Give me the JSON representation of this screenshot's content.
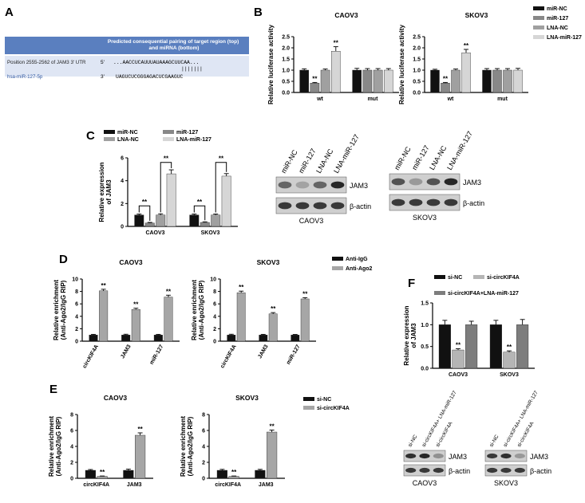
{
  "panel_letters": {
    "a": "A",
    "b": "B",
    "c": "C",
    "d": "D",
    "e": "E",
    "f": "F"
  },
  "panelA": {
    "header": "Predicted consequential pairing of target region (top) and miRNA (bottom)",
    "row1_label": "Position 2555-2562 of JAM3 3' UTR",
    "row1_end": "5'",
    "row1_seq": "...AACCUCAUUUAUAAAGCUUCAA...",
    "pairing": "|||||||",
    "row2_label": "hsa-miR-127-5p",
    "row2_end": "3'",
    "row2_seq": "UAGUCUCGGGAGACUCGAAGUC",
    "colors": {
      "header_bg": "#5a7fbf",
      "row_bg": "#dfe6f4",
      "label_color": "#2e56a0"
    }
  },
  "blots": {
    "C_caov3": {
      "lanes": [
        "miR-NC",
        "miR-127",
        "LNA-NC",
        "LNA-miR-127"
      ],
      "bands": [
        "JAM3",
        "β-actin"
      ],
      "caption": "CAOV3"
    },
    "C_skov3": {
      "lanes": [
        "miR-NC",
        "miR-127",
        "LNA-NC",
        "LNA-miR-127"
      ],
      "bands": [
        "JAM3",
        "β-actin"
      ],
      "caption": "SKOV3"
    },
    "F_caov3": {
      "lanes": [
        "si-NC",
        "si-circKIF4A+ LNA-miR-127",
        "si-circKIF4A"
      ],
      "bands": [
        "JAM3",
        "β-actin"
      ],
      "caption": "CAOV3"
    },
    "F_skov3": {
      "lanes": [
        "si-NC",
        "si-circKIF4A+ LNA-miR-127",
        "si-circKIF4A"
      ],
      "bands": [
        "JAM3",
        "β-actin"
      ],
      "caption": "SKOV3"
    }
  },
  "chart_data": [
    {
      "id": "B1",
      "type": "bar",
      "title": "CAOV3",
      "ylabel": "Relative luciferase activity",
      "ylim": [
        0,
        2.5
      ],
      "yticks": [
        "0.0",
        "0.5",
        "1.0",
        "1.5",
        "2.0",
        "2.5"
      ],
      "categories": [
        "wt",
        "mut"
      ],
      "series": [
        {
          "name": "miR-NC",
          "color": "#111111",
          "values": [
            1.0,
            1.0
          ],
          "errors": [
            0.06,
            0.08
          ],
          "sig": [
            "",
            ""
          ]
        },
        {
          "name": "miR-127",
          "color": "#888888",
          "values": [
            0.42,
            1.0
          ],
          "errors": [
            0.03,
            0.07
          ],
          "sig": [
            "**",
            ""
          ]
        },
        {
          "name": "LNA-NC",
          "color": "#a0a0a0",
          "values": [
            1.0,
            1.0
          ],
          "errors": [
            0.05,
            0.07
          ],
          "sig": [
            "",
            ""
          ]
        },
        {
          "name": "LNA-miR-127",
          "color": "#d6d6d6",
          "values": [
            1.85,
            1.0
          ],
          "errors": [
            0.2,
            0.07
          ],
          "sig": [
            "**",
            ""
          ]
        }
      ]
    },
    {
      "id": "B2",
      "type": "bar",
      "title": "SKOV3",
      "ylabel": "Relative luciferase activity",
      "ylim": [
        0,
        2.5
      ],
      "yticks": [
        "0.0",
        "0.5",
        "1.0",
        "1.5",
        "2.0",
        "2.5"
      ],
      "categories": [
        "wt",
        "mut"
      ],
      "series": [
        {
          "name": "miR-NC",
          "color": "#111111",
          "values": [
            1.0,
            1.0
          ],
          "errors": [
            0.04,
            0.07
          ],
          "sig": [
            "",
            ""
          ]
        },
        {
          "name": "miR-127",
          "color": "#888888",
          "values": [
            0.42,
            1.0
          ],
          "errors": [
            0.03,
            0.07
          ],
          "sig": [
            "**",
            ""
          ]
        },
        {
          "name": "LNA-NC",
          "color": "#a0a0a0",
          "values": [
            1.0,
            1.0
          ],
          "errors": [
            0.05,
            0.07
          ],
          "sig": [
            "",
            ""
          ]
        },
        {
          "name": "LNA-miR-127",
          "color": "#d6d6d6",
          "values": [
            1.78,
            1.0
          ],
          "errors": [
            0.15,
            0.08
          ],
          "sig": [
            "**",
            ""
          ]
        }
      ]
    },
    {
      "id": "C",
      "type": "bar",
      "ylabel": "Relative expression of JAM3",
      "ylim": [
        0,
        6
      ],
      "yticks": [
        "0",
        "2",
        "4",
        "6"
      ],
      "categories": [
        "CAOV3",
        "SKOV3"
      ],
      "series": [
        {
          "name": "miR-NC",
          "color": "#111111",
          "values": [
            1.0,
            1.0
          ],
          "errors": [
            0.08,
            0.08
          ]
        },
        {
          "name": "miR-127",
          "color": "#888888",
          "values": [
            0.3,
            0.35
          ],
          "errors": [
            0.05,
            0.05
          ]
        },
        {
          "name": "LNA-NC",
          "color": "#a0a0a0",
          "values": [
            1.0,
            1.0
          ],
          "errors": [
            0.1,
            0.08
          ]
        },
        {
          "name": "LNA-miR-127",
          "color": "#d6d6d6",
          "values": [
            4.6,
            4.4
          ],
          "errors": [
            0.35,
            0.22
          ]
        }
      ],
      "brackets": [
        {
          "category": 0,
          "from": 0,
          "to": 1,
          "level": 1.8,
          "label": "**"
        },
        {
          "category": 0,
          "from": 2,
          "to": 3,
          "level": 5.6,
          "label": "**"
        },
        {
          "category": 1,
          "from": 0,
          "to": 1,
          "level": 1.8,
          "label": "**"
        },
        {
          "category": 1,
          "from": 2,
          "to": 3,
          "level": 5.6,
          "label": "**"
        }
      ]
    },
    {
      "id": "D1",
      "type": "bar",
      "title": "CAOV3",
      "ylabel": "Relative enrichment (Anti-Ago2/IgG RIP)",
      "ylim": [
        0,
        10
      ],
      "yticks": [
        "0",
        "2",
        "4",
        "6",
        "8",
        "10"
      ],
      "categories": [
        "circKIF4A",
        "JAM3",
        "miR-127"
      ],
      "series": [
        {
          "name": "Anti-IgG",
          "color": "#111111",
          "values": [
            1.0,
            1.0,
            1.0
          ],
          "errors": [
            0.1,
            0.12,
            0.1
          ],
          "sig": [
            "",
            "",
            ""
          ]
        },
        {
          "name": "Anti-Ago2",
          "color": "#a6a6a6",
          "values": [
            8.1,
            5.1,
            7.1
          ],
          "errors": [
            0.25,
            0.2,
            0.3
          ],
          "sig": [
            "**",
            "**",
            "**"
          ]
        }
      ]
    },
    {
      "id": "D2",
      "type": "bar",
      "title": "SKOV3",
      "ylabel": "Relative enrichment (Anti-Ago2/IgG RIP)",
      "ylim": [
        0,
        10
      ],
      "yticks": [
        "0",
        "2",
        "4",
        "6",
        "8",
        "10"
      ],
      "categories": [
        "circKIF4A",
        "JAM3",
        "miR-127"
      ],
      "series": [
        {
          "name": "Anti-IgG",
          "color": "#111111",
          "values": [
            1.0,
            1.0,
            1.0
          ],
          "errors": [
            0.12,
            0.1,
            0.08
          ],
          "sig": [
            "",
            "",
            ""
          ]
        },
        {
          "name": "Anti-Ago2",
          "color": "#a6a6a6",
          "values": [
            7.8,
            4.4,
            6.8
          ],
          "errors": [
            0.25,
            0.2,
            0.2
          ],
          "sig": [
            "**",
            "**",
            "**"
          ]
        }
      ]
    },
    {
      "id": "E1",
      "type": "bar",
      "title": "CAOV3",
      "ylabel": "Relative enrichment (Anti-Ago2/IgG RIP)",
      "ylim": [
        0,
        8
      ],
      "yticks": [
        "0",
        "2",
        "4",
        "6",
        "8"
      ],
      "categories": [
        "circKIF4A",
        "JAM3"
      ],
      "series": [
        {
          "name": "si-NC",
          "color": "#111111",
          "values": [
            1.0,
            1.0
          ],
          "errors": [
            0.1,
            0.15
          ],
          "sig": [
            "",
            ""
          ]
        },
        {
          "name": "si-circKIF4A",
          "color": "#a6a6a6",
          "values": [
            0.25,
            5.4
          ],
          "errors": [
            0.04,
            0.3
          ],
          "sig": [
            "**",
            "**"
          ]
        }
      ]
    },
    {
      "id": "E2",
      "type": "bar",
      "title": "SKOV3",
      "ylabel": "Relative enrichment (Anti-Ago2/IgG RIP)",
      "ylim": [
        0,
        8
      ],
      "yticks": [
        "0",
        "2",
        "4",
        "6",
        "8"
      ],
      "categories": [
        "circKIF4A",
        "JAM3"
      ],
      "series": [
        {
          "name": "si-NC",
          "color": "#111111",
          "values": [
            1.0,
            1.0
          ],
          "errors": [
            0.12,
            0.12
          ],
          "sig": [
            "",
            ""
          ]
        },
        {
          "name": "si-circKIF4A",
          "color": "#a6a6a6",
          "values": [
            0.25,
            5.8
          ],
          "errors": [
            0.04,
            0.25
          ],
          "sig": [
            "**",
            "**"
          ]
        }
      ]
    },
    {
      "id": "F",
      "type": "bar",
      "ylabel": "Relative expression of JAM3",
      "ylim": [
        0,
        1.5
      ],
      "yticks": [
        "0.0",
        "0.5",
        "1.0",
        "1.5"
      ],
      "categories": [
        "CAOV3",
        "SKOV3"
      ],
      "series": [
        {
          "name": "si-NC",
          "color": "#111111",
          "values": [
            1.0,
            1.0
          ],
          "errors": [
            0.1,
            0.1
          ],
          "sig": [
            "",
            ""
          ]
        },
        {
          "name": "si-circKIF4A",
          "color": "#b5b5b5",
          "values": [
            0.42,
            0.37
          ],
          "errors": [
            0.03,
            0.03
          ],
          "sig": [
            "**",
            "**"
          ]
        },
        {
          "name": "si-circKIF4A+LNA-miR-127",
          "color": "#7d7d7d",
          "values": [
            1.0,
            1.0
          ],
          "errors": [
            0.08,
            0.12
          ],
          "sig": [
            "",
            ""
          ]
        }
      ]
    }
  ]
}
